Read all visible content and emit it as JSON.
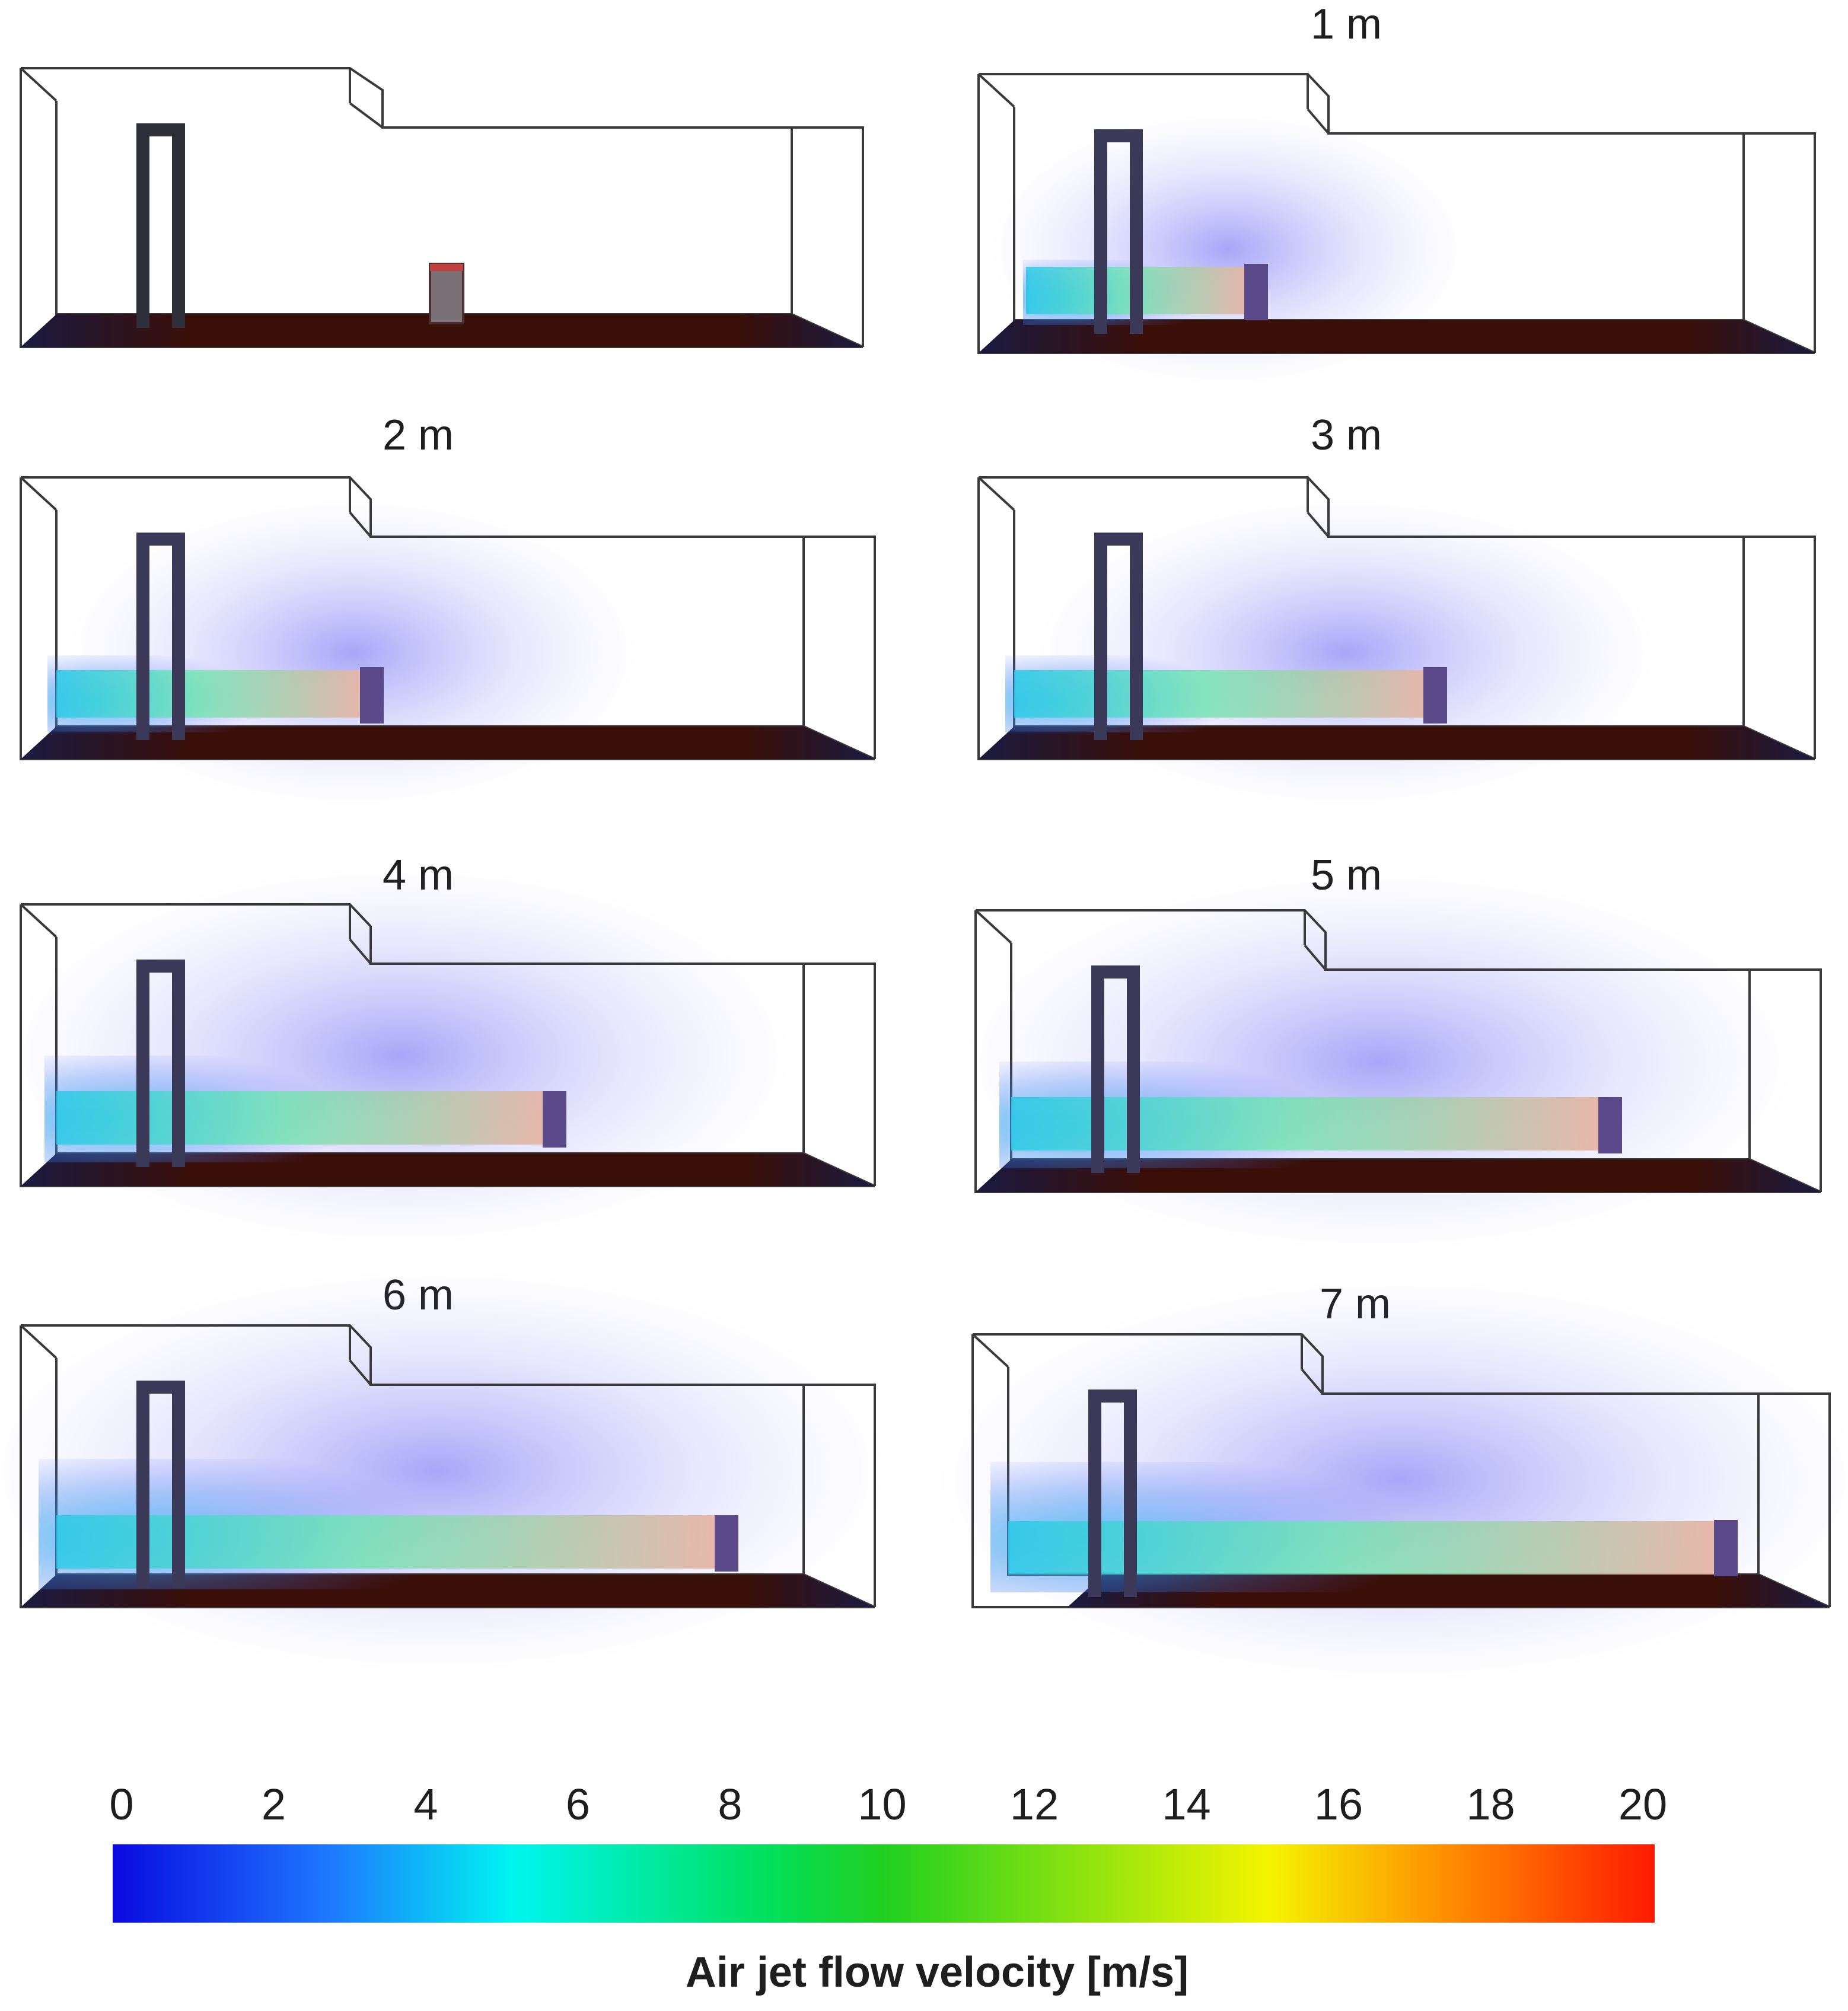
{
  "panels": [
    {
      "label": "",
      "jet_length_m": 0
    },
    {
      "label": "1 m",
      "jet_length_m": 1
    },
    {
      "label": "2 m",
      "jet_length_m": 2
    },
    {
      "label": "3 m",
      "jet_length_m": 3
    },
    {
      "label": "4 m",
      "jet_length_m": 4
    },
    {
      "label": "5 m",
      "jet_length_m": 5
    },
    {
      "label": "6 m",
      "jet_length_m": 6
    },
    {
      "label": "7 m",
      "jet_length_m": 7
    }
  ],
  "colorbar": {
    "ticks": [
      "0",
      "2",
      "4",
      "6",
      "8",
      "10",
      "12",
      "14",
      "16",
      "18",
      "20"
    ],
    "range": [
      0,
      20
    ],
    "title": "Air jet flow velocity  [m/s]",
    "colormap": [
      "#0a0ae0",
      "#1e78ff",
      "#00f5f0",
      "#00e060",
      "#20d020",
      "#f4f400",
      "#ff8a00",
      "#ff1a00"
    ]
  },
  "colors": {
    "floor": "#3a0f08",
    "door": "#2f2f3a",
    "wall_line": "#3a3a3a"
  }
}
